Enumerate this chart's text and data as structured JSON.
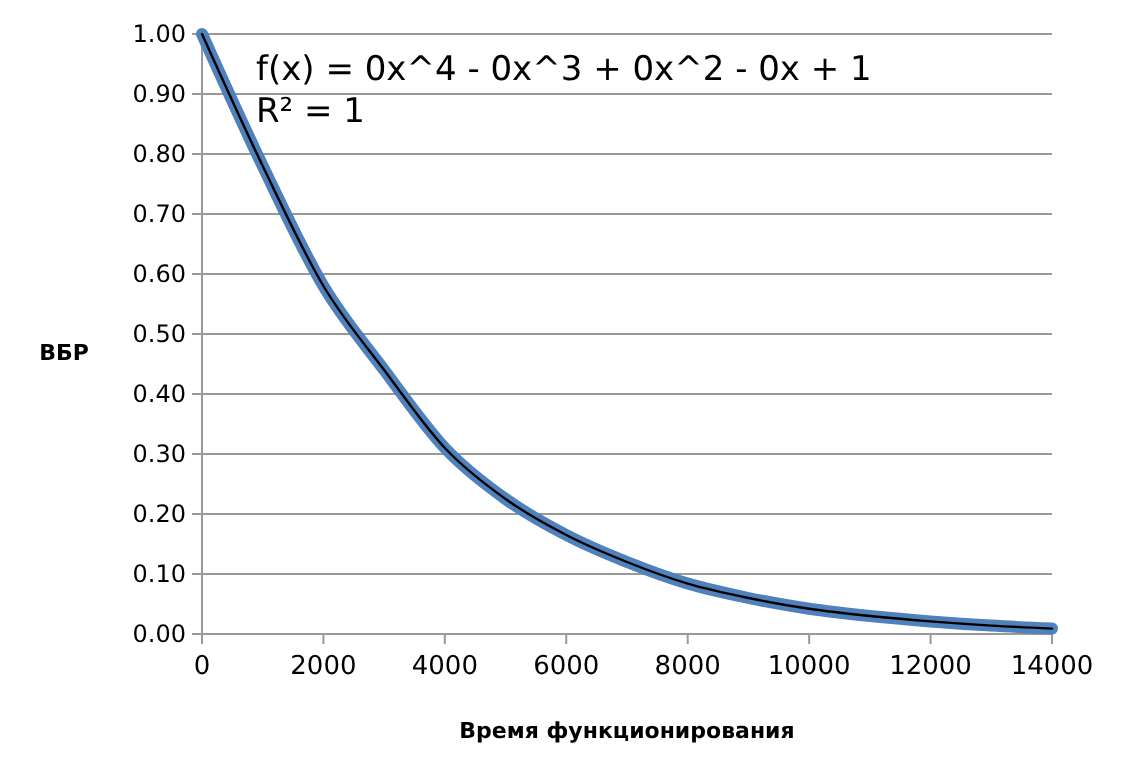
{
  "chart_data": {
    "type": "line",
    "xlabel": "Время функционирования",
    "ylabel": "ВБР",
    "x": [
      0,
      1000,
      2000,
      3000,
      4000,
      5000,
      6000,
      7000,
      8000,
      9000,
      10000,
      11000,
      12000,
      13000,
      14000
    ],
    "series": [
      {
        "color": "#4f81bd",
        "values": [
          1.0,
          0.78,
          0.58,
          0.44,
          0.31,
          0.225,
          0.165,
          0.12,
          0.084,
          0.06,
          0.042,
          0.03,
          0.021,
          0.014,
          0.009
        ]
      },
      {
        "color": "#000000",
        "values": [
          1.0,
          0.78,
          0.58,
          0.44,
          0.31,
          0.225,
          0.165,
          0.12,
          0.084,
          0.06,
          0.042,
          0.03,
          0.021,
          0.014,
          0.009
        ]
      }
    ],
    "xlim": [
      0,
      14000
    ],
    "xticks": [
      0,
      2000,
      4000,
      6000,
      8000,
      10000,
      12000,
      14000
    ],
    "ylim": [
      0,
      1
    ],
    "yticks": [
      {
        "value": 0,
        "label": "0.00"
      },
      {
        "value": 0.1,
        "label": "0.10"
      },
      {
        "value": 0.2,
        "label": "0.20"
      },
      {
        "value": 0.3,
        "label": "0.30"
      },
      {
        "value": 0.4,
        "label": "0.40"
      },
      {
        "value": 0.5,
        "label": "0.50"
      },
      {
        "value": 0.6,
        "label": "0.60"
      },
      {
        "value": 0.7,
        "label": "0.70"
      },
      {
        "value": 0.8,
        "label": "0.80"
      },
      {
        "value": 0.9,
        "label": "0.90"
      },
      {
        "value": 1,
        "label": "1.00"
      }
    ],
    "grid": "y",
    "marker": "none",
    "line_style": "solid",
    "annotations": [
      "f(x) = 0x^4 - 0x^3 + 0x^2 - 0x + 1",
      "R² = 1"
    ]
  }
}
